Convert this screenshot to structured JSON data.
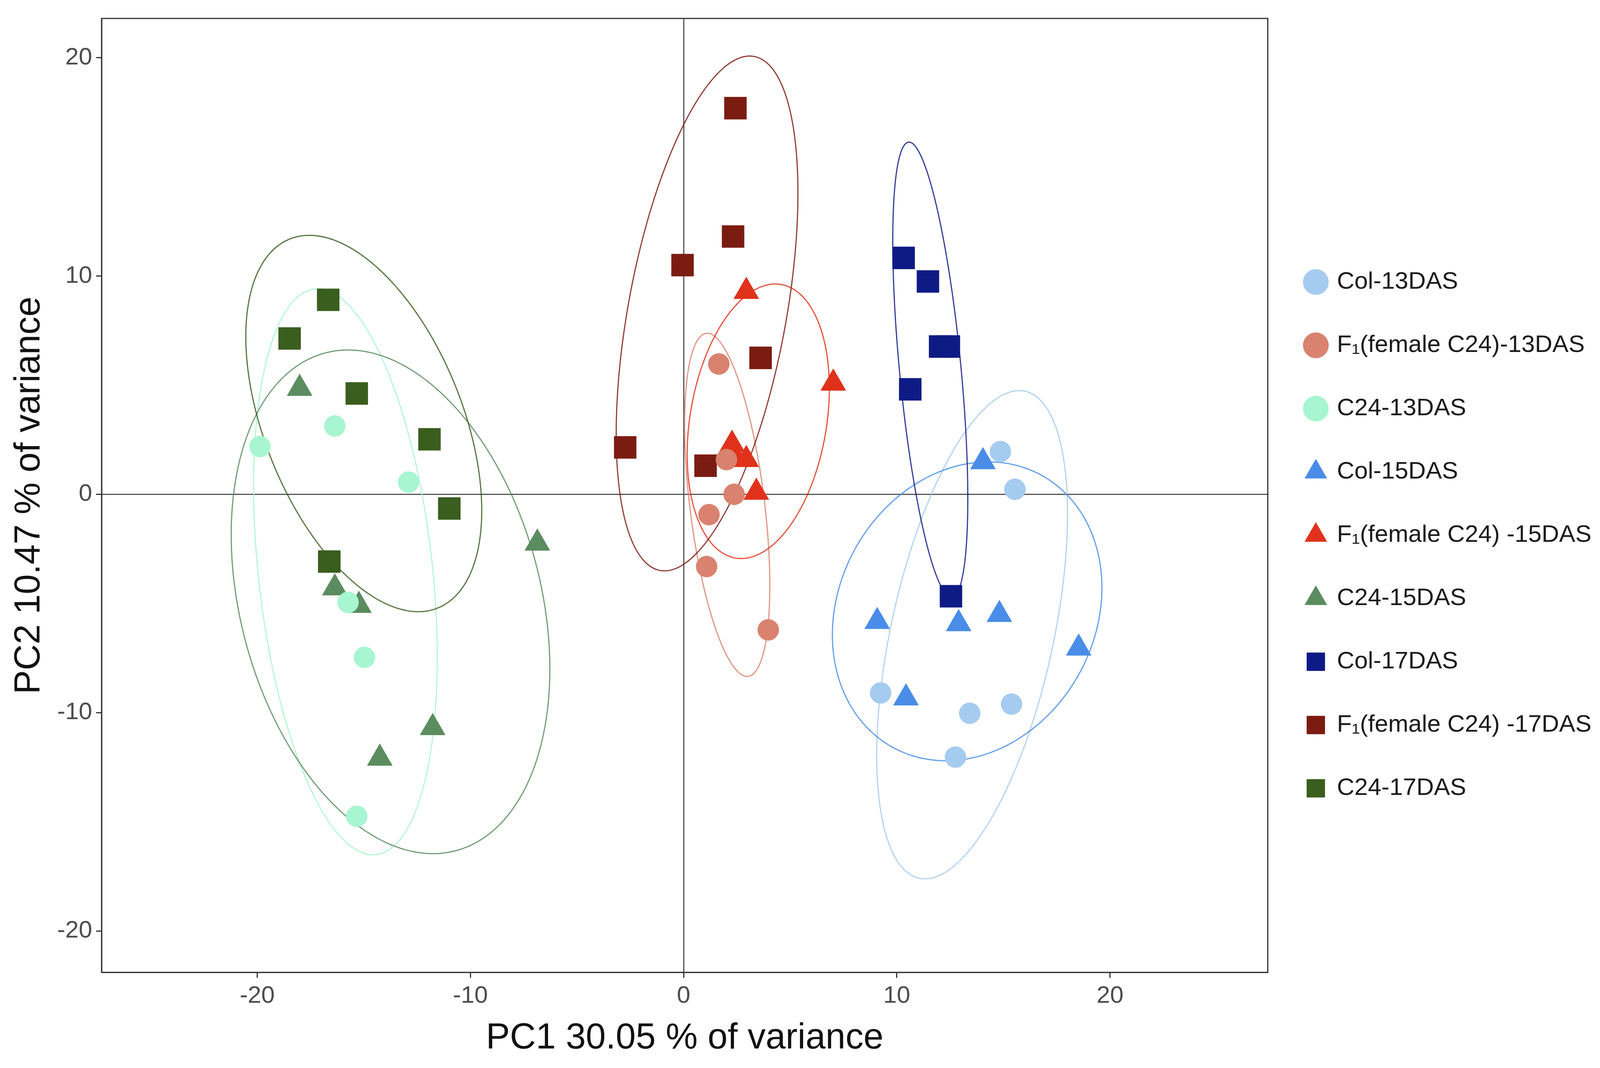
{
  "chart_data": {
    "type": "scatter",
    "x_label": "PC1 30.05 % of variance",
    "y_label": "PC2 10.47 % of variance",
    "xlim": [
      -27.3,
      27.4
    ],
    "ylim": [
      -21.9,
      21.8
    ],
    "xticks": [
      -20,
      -10,
      0,
      10,
      20
    ],
    "yticks": [
      -20,
      -10,
      0,
      10,
      20
    ],
    "grid": false,
    "legend": "right",
    "series": [
      {
        "name": "Col-13DAS",
        "color": "#a6cbf0",
        "marker": "circle",
        "x": [
          14.86,
          15.54,
          9.24,
          13.42,
          12.75,
          15.38
        ],
        "y": [
          1.96,
          0.23,
          -9.1,
          -10.03,
          -12.04,
          -9.61
        ]
      },
      {
        "name": "F₁(female C24)-13DAS",
        "color": "#d9826f",
        "marker": "circle",
        "x": [
          1.65,
          2.37,
          1.19,
          1.08,
          3.97,
          2.01
        ],
        "y": [
          5.97,
          0.0,
          -0.93,
          -3.31,
          -6.21,
          1.59
        ]
      },
      {
        "name": "C24-13DAS",
        "color": "#a8f5d2",
        "marker": "circle",
        "x": [
          -19.87,
          -16.36,
          -12.9,
          -15.74,
          -14.97,
          -15.33
        ],
        "y": [
          2.19,
          3.13,
          0.56,
          -4.95,
          -7.47,
          -14.75
        ]
      },
      {
        "name": "Col-15DAS",
        "color": "#4a8de8",
        "marker": "triangle",
        "x": [
          14.04,
          9.08,
          10.43,
          12.9,
          14.81,
          18.53
        ],
        "y": [
          1.49,
          -5.83,
          -9.33,
          -5.93,
          -5.51,
          -7.05
        ]
      },
      {
        "name": "F₁(female C24) -15DAS",
        "color": "#e0321b",
        "marker": "triangle",
        "x": [
          2.94,
          7.02,
          2.27,
          2.43,
          2.94,
          3.41
        ],
        "y": [
          9.29,
          5.09,
          2.29,
          1.73,
          1.59,
          0.09
        ]
      },
      {
        "name": "C24-15DAS",
        "color": "#5b8c5f",
        "marker": "triangle",
        "x": [
          -18.01,
          -6.86,
          -16.36,
          -15.23,
          -11.77,
          -14.25
        ],
        "y": [
          4.85,
          -2.24,
          -4.29,
          -5.09,
          -10.69,
          -12.09
        ]
      },
      {
        "name": "Col-17DAS",
        "color": "#0f1b85",
        "marker": "square",
        "x": [
          10.32,
          11.46,
          12.03,
          12.44,
          10.63,
          12.54
        ],
        "y": [
          10.83,
          9.75,
          6.77,
          6.77,
          4.81,
          -4.67
        ]
      },
      {
        "name": "F₁(female C24) -17DAS",
        "color": "#7b1c12",
        "marker": "square",
        "x": [
          2.43,
          2.32,
          -0.05,
          3.61,
          -2.74,
          1.03
        ],
        "y": [
          17.69,
          11.81,
          10.5,
          6.25,
          2.15,
          1.31
        ]
      },
      {
        "name": "C24-17DAS",
        "color": "#3a5e1e",
        "marker": "square",
        "x": [
          -16.67,
          -18.48,
          -15.33,
          -11.92,
          -10.99,
          -16.62
        ],
        "y": [
          8.91,
          7.14,
          4.62,
          2.52,
          -0.65,
          -3.08
        ]
      }
    ]
  }
}
